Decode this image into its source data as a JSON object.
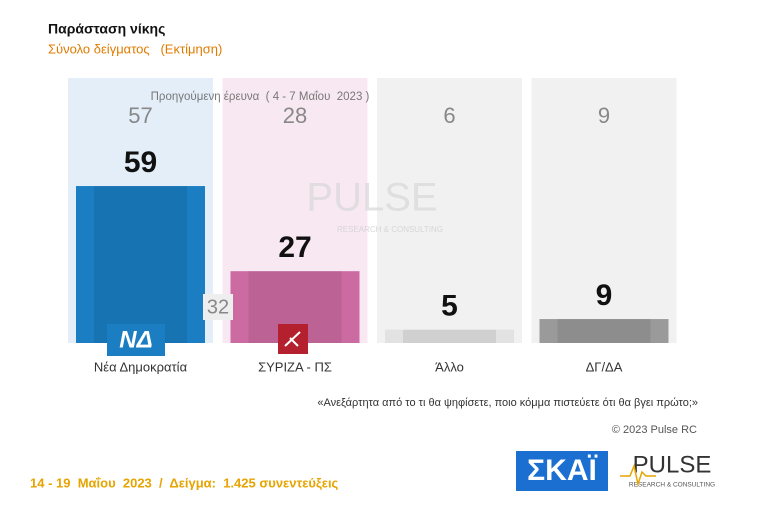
{
  "chart_data": {
    "type": "bar",
    "title": "Παράσταση νίκης",
    "subtitle": "Σύνολο δείγματος   (Εκτίμηση)",
    "categories": [
      "Νέα Δημοκρατία",
      "ΣΥΡΙΖΑ - ΠΣ",
      "Άλλο",
      "ΔΓ/ΔΑ"
    ],
    "series": [
      {
        "name": "Προηγούμενη έρευνα  ( 4 - 7 Μαΐου  2023 )",
        "values": [
          57,
          28,
          6,
          9
        ],
        "colors": [
          "#e3eef9",
          "#f8e8f1",
          "#f1f1f1",
          "#f1f1f1"
        ]
      },
      {
        "values": [
          59,
          27,
          5,
          9
        ],
        "colors": [
          "#1b7dc2",
          "#cc6ba1",
          "#e2e2e2",
          "#9a9a9a"
        ]
      }
    ],
    "lead": 32,
    "party_logo": "ΝΔ",
    "question": "«Ανεξάρτητα από το τι θα ψηφίσετε, ποιο κόμμα πιστεύετε ότι θα βγει πρώτο;»",
    "copyright": "© 2023 Pulse RC",
    "footer": "14 - 19  Μαΐου  2023  /  Δείγμα:  1.425 συνεντεύξεις",
    "broadcaster": "ΣΚΑΪ",
    "pollster": "PULSE",
    "pollster_tagline": "RESEARCH & CONSULTING"
  }
}
